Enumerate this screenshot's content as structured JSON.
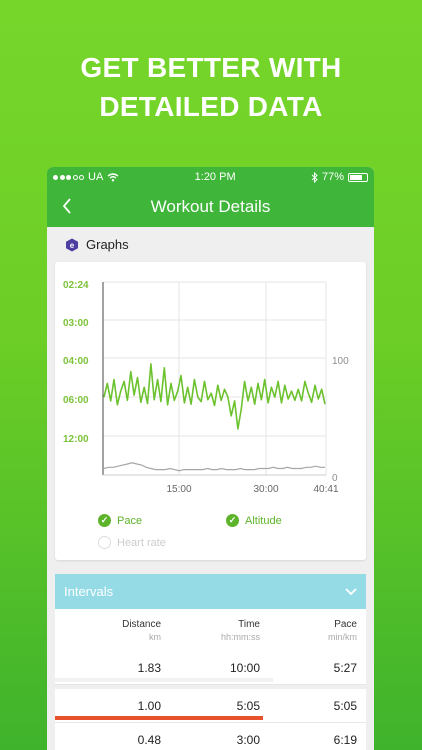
{
  "headline": {
    "line1": "GET BETTER WITH",
    "line2": "DETAILED DATA"
  },
  "status_bar": {
    "carrier": "UA",
    "time": "1:20 PM",
    "battery": "77%"
  },
  "nav": {
    "title": "Workout Details",
    "back_icon": "chevron-left-icon"
  },
  "graphs_section": {
    "title": "Graphs",
    "icon": "hexagon-e-icon"
  },
  "chart_data": {
    "type": "line",
    "left_ticks": [
      "02:24",
      "03:00",
      "04:00",
      "06:00",
      "12:00"
    ],
    "right_ticks": [
      "100",
      "0"
    ],
    "x_ticks": [
      "15:00",
      "30:00",
      "40:41"
    ],
    "series": [
      {
        "name": "Pace",
        "color": "#6cc22e",
        "values": [
          5.9,
          5.2,
          6.3,
          5.0,
          6.9,
          5.6,
          5.1,
          6.2,
          4.6,
          5.8,
          4.9,
          6.5,
          5.4,
          6.7,
          4.2,
          6.1,
          5.0,
          6.4,
          4.4,
          6.9,
          5.2,
          6.2,
          5.6,
          4.8,
          6.6,
          5.4,
          6.8,
          5.0,
          5.9,
          6.4,
          5.1,
          6.1,
          5.7,
          7.0,
          5.3,
          6.2,
          5.5,
          5.9,
          8.6,
          6.3,
          10.6,
          7.5,
          5.1,
          6.3,
          5.4,
          6.8,
          5.2,
          6.1,
          5.0,
          6.6,
          5.4,
          5.9,
          5.1,
          6.6,
          5.3,
          6.0,
          5.6,
          6.2,
          5.5,
          6.3,
          5.1,
          5.7,
          6.5,
          5.3,
          6.0,
          5.5,
          6.8
        ]
      },
      {
        "name": "Altitude",
        "color": "#a6a6a6",
        "values": [
          4,
          5,
          5,
          6,
          7,
          8,
          9,
          8,
          7,
          5,
          4,
          3,
          3,
          3,
          4,
          3,
          2,
          3,
          3,
          3,
          3,
          3,
          4,
          3,
          3,
          4,
          3,
          3,
          3,
          4,
          3,
          3,
          3,
          4,
          4,
          4,
          5,
          4,
          4,
          5,
          4,
          4,
          4,
          5,
          5,
          6,
          5,
          5
        ]
      }
    ],
    "legend": [
      {
        "label": "Pace",
        "checked": true
      },
      {
        "label": "Altitude",
        "checked": true
      },
      {
        "label": "Heart rate",
        "checked": false
      }
    ],
    "colors": {
      "pace_axis": "#7cc23a",
      "altitude_axis": "#8e8e8e",
      "grid": "#e6e6e6"
    }
  },
  "intervals": {
    "title": "Intervals",
    "columns": [
      {
        "label": "Distance",
        "unit": "km"
      },
      {
        "label": "Time",
        "unit": "hh:mm:ss"
      },
      {
        "label": "Pace",
        "unit": "min/km"
      }
    ],
    "rows": [
      {
        "distance": "1.83",
        "time": "10:00",
        "pace": "5:27",
        "bar_fraction": 0.7,
        "bar_color": "#f2f2f2"
      },
      {
        "distance": "1.00",
        "time": "5:05",
        "pace": "5:05",
        "bar_fraction": 0.67,
        "bar_color": "#e6522c"
      },
      {
        "distance": "0.48",
        "time": "3:00",
        "pace": "6:19",
        "bar_fraction": 0.86,
        "bar_color": "#f2f2f2"
      }
    ]
  },
  "colors": {
    "accent": "#3fb63a",
    "intervals_header": "#94dbe6"
  }
}
